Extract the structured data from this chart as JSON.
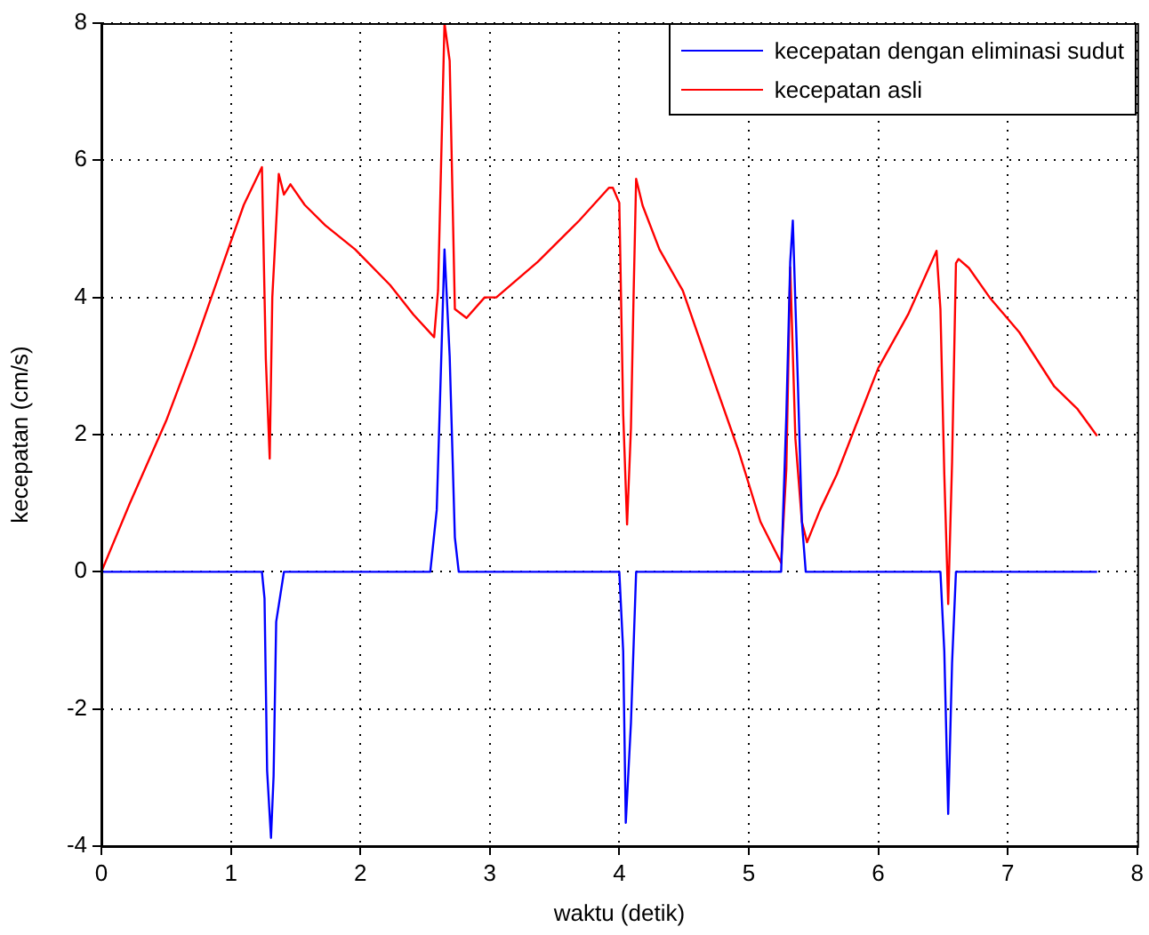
{
  "chart_data": {
    "type": "line",
    "xlabel": "waktu (detik)",
    "ylabel": "kecepatan (cm/s)",
    "xlim": [
      0,
      8
    ],
    "xticks": [
      0,
      1,
      2,
      3,
      4,
      5,
      6,
      7,
      8
    ],
    "ylim": [
      -4,
      8
    ],
    "yticks": [
      -4,
      -2,
      0,
      2,
      4,
      6,
      8
    ],
    "grid": true,
    "legend": "top right",
    "marker": "none",
    "line_style": "solid",
    "series": [
      {
        "name": "kecepatan dengan eliminasi sudut",
        "color": "#0000ff",
        "x": [
          0,
          1.24,
          1.26,
          1.28,
          1.31,
          1.33,
          1.35,
          1.41,
          2.54,
          2.59,
          2.65,
          2.69,
          2.73,
          2.76,
          4.0,
          4.03,
          4.05,
          4.09,
          4.13,
          5.25,
          5.29,
          5.32,
          5.34,
          5.38,
          5.41,
          5.44,
          6.48,
          6.51,
          6.54,
          6.57,
          6.6,
          7.69
        ],
        "values": [
          0,
          0,
          -0.39,
          -2.9,
          -3.88,
          -2.98,
          -0.73,
          0,
          0,
          0.9,
          4.7,
          3.14,
          0.5,
          0,
          0,
          -1.16,
          -3.66,
          -2.2,
          0,
          0,
          2.28,
          4.52,
          5.12,
          2.7,
          0.73,
          0,
          0,
          -1.16,
          -3.53,
          -1.33,
          0,
          0
        ]
      },
      {
        "name": "kecepatan asli",
        "color": "#ff0000",
        "x": [
          0,
          0.22,
          0.5,
          0.72,
          0.96,
          1.1,
          1.24,
          1.27,
          1.3,
          1.32,
          1.37,
          1.41,
          1.46,
          1.57,
          1.73,
          1.96,
          2.23,
          2.41,
          2.57,
          2.6,
          2.65,
          2.69,
          2.73,
          2.82,
          2.96,
          3.05,
          3.37,
          3.69,
          3.92,
          3.95,
          4.0,
          4.03,
          4.06,
          4.09,
          4.11,
          4.13,
          4.18,
          4.31,
          4.49,
          4.71,
          4.92,
          5.09,
          5.25,
          5.29,
          5.32,
          5.36,
          5.41,
          5.45,
          5.55,
          5.68,
          5.82,
          6.0,
          6.23,
          6.45,
          6.48,
          6.51,
          6.54,
          6.57,
          6.6,
          6.62,
          6.7,
          6.86,
          7.09,
          7.36,
          7.54,
          7.69
        ],
        "values": [
          0,
          1.0,
          2.2,
          3.3,
          4.6,
          5.35,
          5.9,
          3.1,
          1.65,
          4.0,
          5.8,
          5.5,
          5.65,
          5.35,
          5.05,
          4.7,
          4.18,
          3.75,
          3.42,
          4.1,
          8,
          7.45,
          3.83,
          3.7,
          4.0,
          4.0,
          4.52,
          5.12,
          5.6,
          5.6,
          5.38,
          2.3,
          0.69,
          2.1,
          4.0,
          5.73,
          5.34,
          4.7,
          4.1,
          2.9,
          1.77,
          0.73,
          0.13,
          1.5,
          4.44,
          1.94,
          0.73,
          0.43,
          0.9,
          1.42,
          2.1,
          2.97,
          3.75,
          4.68,
          3.83,
          1.42,
          -0.47,
          1.6,
          4.5,
          4.56,
          4.43,
          4.0,
          3.49,
          2.7,
          2.37,
          1.98
        ]
      }
    ]
  }
}
